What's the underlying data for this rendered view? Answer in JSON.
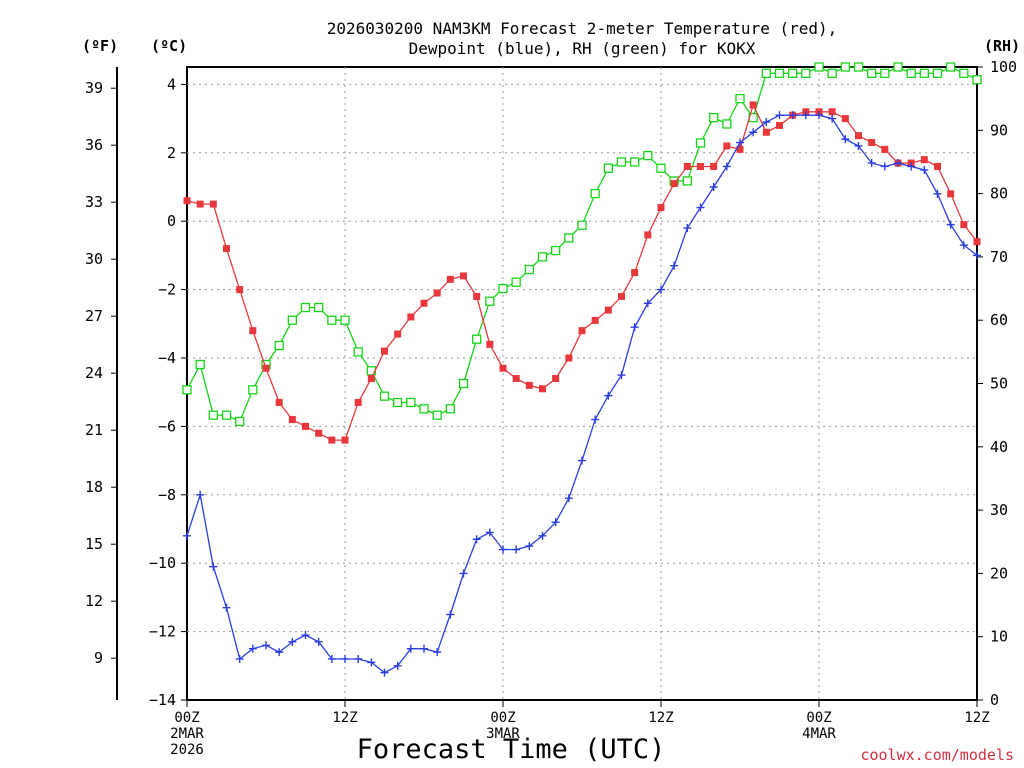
{
  "chart_data": {
    "type": "line",
    "title_line1": "2026030200 NAM3KM Forecast 2-meter Temperature (red),",
    "title_line2": "Dewpoint (blue), RH (green) for KOKX",
    "xlabel": "Forecast Time (UTC)",
    "credit": "coolwx.com/models",
    "units": {
      "fahrenheit": "(ºF)",
      "celsius": "(ºC)",
      "rh": "(RH)"
    },
    "x_hours": [
      0,
      1,
      2,
      3,
      4,
      5,
      6,
      7,
      8,
      9,
      10,
      11,
      12,
      13,
      14,
      15,
      16,
      17,
      18,
      19,
      20,
      21,
      22,
      23,
      24,
      25,
      26,
      27,
      28,
      29,
      30,
      31,
      32,
      33,
      34,
      35,
      36,
      37,
      38,
      39,
      40,
      41,
      42,
      43,
      44,
      45,
      46,
      47,
      48,
      49,
      50,
      51,
      52,
      53,
      54,
      55,
      56,
      57,
      58,
      59,
      60
    ],
    "xlim": [
      0,
      60
    ],
    "celsius_ylim": [
      -14,
      4.2
    ],
    "rh_ylim": [
      0,
      100
    ],
    "xticks": [
      {
        "hour": 0,
        "line1": "00Z",
        "line2": "2MAR",
        "line3": "2026"
      },
      {
        "hour": 12,
        "line1": "12Z",
        "line2": "",
        "line3": ""
      },
      {
        "hour": 24,
        "line1": "00Z",
        "line2": "3MAR",
        "line3": ""
      },
      {
        "hour": 36,
        "line1": "12Z",
        "line2": "",
        "line3": ""
      },
      {
        "hour": 48,
        "line1": "00Z",
        "line2": "4MAR",
        "line3": ""
      },
      {
        "hour": 60,
        "line1": "12Z",
        "line2": "",
        "line3": ""
      }
    ],
    "celsius_ticks": [
      "4",
      "2",
      "0",
      "−2",
      "−4",
      "−6",
      "−8",
      "−10",
      "−12",
      "−14"
    ],
    "celsius_tick_values": [
      4,
      2,
      0,
      -2,
      -4,
      -6,
      -8,
      -10,
      -12,
      -14
    ],
    "fahrenheit_ticks": [
      "39",
      "36",
      "33",
      "30",
      "27",
      "24",
      "21",
      "18",
      "15",
      "12",
      "9"
    ],
    "fahrenheit_tick_values": [
      39,
      36,
      33,
      30,
      27,
      24,
      21,
      18,
      15,
      12,
      9
    ],
    "rh_ticks": [
      "100",
      "90",
      "80",
      "70",
      "60",
      "50",
      "40",
      "30",
      "20",
      "10",
      "0"
    ],
    "rh_tick_values": [
      100,
      90,
      80,
      70,
      60,
      50,
      40,
      30,
      20,
      10,
      0
    ],
    "series": [
      {
        "name": "Temperature",
        "axis": "celsius",
        "color": "#e8383c",
        "marker": "filled-square",
        "values": [
          0.6,
          0.5,
          0.5,
          -0.8,
          -2.0,
          -3.2,
          -4.3,
          -5.3,
          -5.8,
          -6.0,
          -6.2,
          -6.4,
          -6.4,
          -5.3,
          -4.6,
          -3.8,
          -3.3,
          -2.8,
          -2.4,
          -2.1,
          -1.7,
          -1.6,
          -2.2,
          -3.6,
          -4.3,
          -4.6,
          -4.8,
          -4.9,
          -4.6,
          -4.0,
          -3.2,
          -2.9,
          -2.6,
          -2.2,
          -1.5,
          -0.4,
          0.4,
          1.1,
          1.6,
          1.6,
          1.6,
          2.2,
          2.1,
          3.4,
          2.6,
          2.8,
          3.1,
          3.2,
          3.2,
          3.2,
          3.0,
          2.5,
          2.3,
          2.1,
          1.7,
          1.7,
          1.8,
          1.6,
          0.8,
          -0.1,
          -0.6
        ]
      },
      {
        "name": "Dewpoint",
        "axis": "celsius",
        "color": "#2a3ee0",
        "marker": "plus",
        "values": [
          -9.2,
          -8.0,
          -10.1,
          -11.3,
          -12.8,
          -12.5,
          -12.4,
          -12.6,
          -12.3,
          -12.1,
          -12.3,
          -12.8,
          -12.8,
          -12.8,
          -12.9,
          -13.2,
          -13.0,
          -12.5,
          -12.5,
          -12.6,
          -11.5,
          -10.3,
          -9.3,
          -9.1,
          -9.6,
          -9.6,
          -9.5,
          -9.2,
          -8.8,
          -8.1,
          -7.0,
          -5.8,
          -5.1,
          -4.5,
          -3.1,
          -2.4,
          -2.0,
          -1.3,
          -0.2,
          0.4,
          1.0,
          1.6,
          2.3,
          2.6,
          2.9,
          3.1,
          3.1,
          3.1,
          3.1,
          3.0,
          2.4,
          2.2,
          1.7,
          1.6,
          1.7,
          1.6,
          1.5,
          0.8,
          -0.1,
          -0.7,
          -1.0
        ]
      },
      {
        "name": "RH",
        "axis": "rh",
        "color": "#18d418",
        "marker": "open-square",
        "values": [
          49,
          53,
          45,
          45,
          44,
          49,
          53,
          56,
          60,
          62,
          62,
          60,
          60,
          55,
          52,
          48,
          47,
          47,
          46,
          45,
          46,
          50,
          57,
          63,
          65,
          66,
          68,
          70,
          71,
          73,
          75,
          80,
          84,
          85,
          85,
          86,
          84,
          82,
          82,
          88,
          92,
          91,
          95,
          92,
          99,
          99,
          99,
          99,
          100,
          99,
          100,
          100,
          99,
          99,
          100,
          99,
          99,
          99,
          100,
          99,
          98
        ]
      }
    ]
  }
}
